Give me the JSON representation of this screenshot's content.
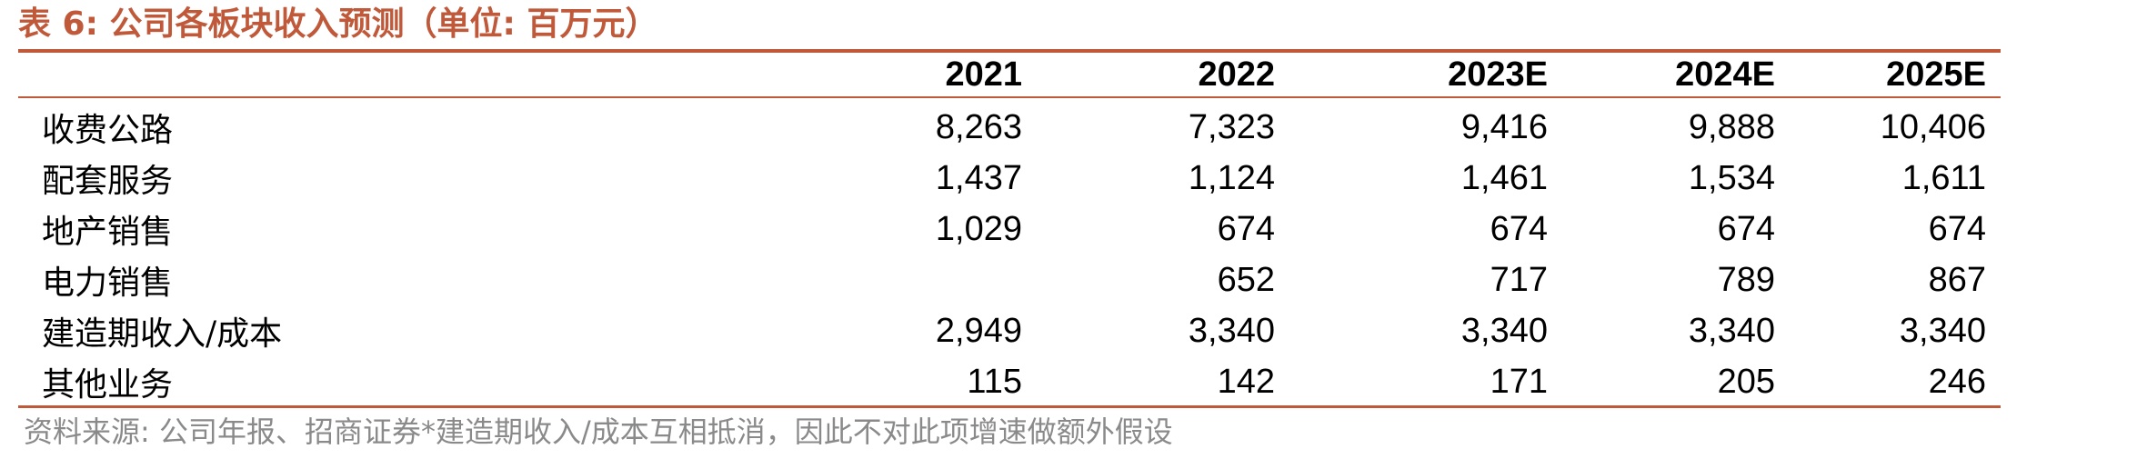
{
  "title": "表 6:  公司各板块收入预测（单位:  百万元）",
  "columns": [
    "",
    "2021",
    "2022",
    "2023E",
    "2024E",
    "2025E"
  ],
  "rows": [
    {
      "label": "收费公路",
      "values": [
        "8,263",
        "7,323",
        "9,416",
        "9,888",
        "10,406"
      ]
    },
    {
      "label": "配套服务",
      "values": [
        "1,437",
        "1,124",
        "1,461",
        "1,534",
        "1,611"
      ]
    },
    {
      "label": "地产销售",
      "values": [
        "1,029",
        "674",
        "674",
        "674",
        "674"
      ]
    },
    {
      "label": "电力销售",
      "values": [
        "",
        "652",
        "717",
        "789",
        "867"
      ]
    },
    {
      "label": "建造期收入/成本",
      "values": [
        "2,949",
        "3,340",
        "3,340",
        "3,340",
        "3,340"
      ]
    },
    {
      "label": "其他业务",
      "values": [
        "115",
        "142",
        "171",
        "205",
        "246"
      ]
    }
  ],
  "source": "资料来源:  公司年报、招商证券*建造期收入/成本互相抵消，因此不对此项增速做额外假设",
  "colors": {
    "accent": "#c0593a",
    "text": "#000000",
    "source_text": "#8a8a8a"
  }
}
